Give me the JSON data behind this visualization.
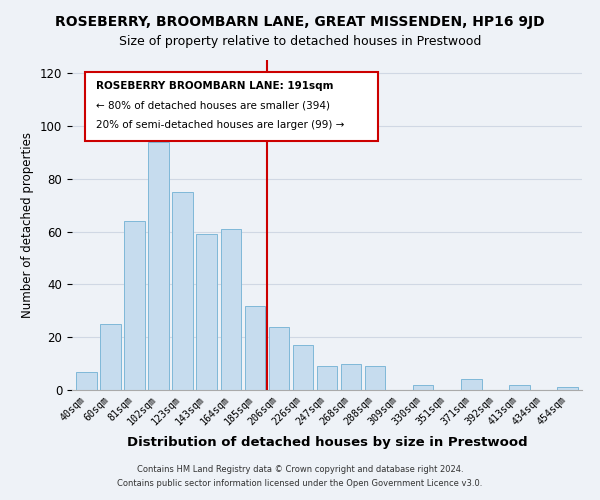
{
  "title": "ROSEBERRY, BROOMBARN LANE, GREAT MISSENDEN, HP16 9JD",
  "subtitle": "Size of property relative to detached houses in Prestwood",
  "xlabel": "Distribution of detached houses by size in Prestwood",
  "ylabel": "Number of detached properties",
  "bar_labels": [
    "40sqm",
    "60sqm",
    "81sqm",
    "102sqm",
    "123sqm",
    "143sqm",
    "164sqm",
    "185sqm",
    "206sqm",
    "226sqm",
    "247sqm",
    "268sqm",
    "288sqm",
    "309sqm",
    "330sqm",
    "351sqm",
    "371sqm",
    "392sqm",
    "413sqm",
    "434sqm",
    "454sqm"
  ],
  "bar_heights": [
    7,
    25,
    64,
    94,
    75,
    59,
    61,
    32,
    24,
    17,
    9,
    10,
    9,
    0,
    2,
    0,
    4,
    0,
    2,
    0,
    1
  ],
  "bar_color": "#c6dcee",
  "bar_edge_color": "#7fb8d8",
  "vline_x": 7.5,
  "vline_color": "#cc0000",
  "ylim": [
    0,
    125
  ],
  "yticks": [
    0,
    20,
    40,
    60,
    80,
    100,
    120
  ],
  "annotation_title": "ROSEBERRY BROOMBARN LANE: 191sqm",
  "annotation_line1": "← 80% of detached houses are smaller (394)",
  "annotation_line2": "20% of semi-detached houses are larger (99) →",
  "footer_line1": "Contains HM Land Registry data © Crown copyright and database right 2024.",
  "footer_line2": "Contains public sector information licensed under the Open Government Licence v3.0.",
  "background_color": "#eef2f7",
  "plot_background_color": "#eef2f7",
  "grid_color": "#d0d8e4"
}
